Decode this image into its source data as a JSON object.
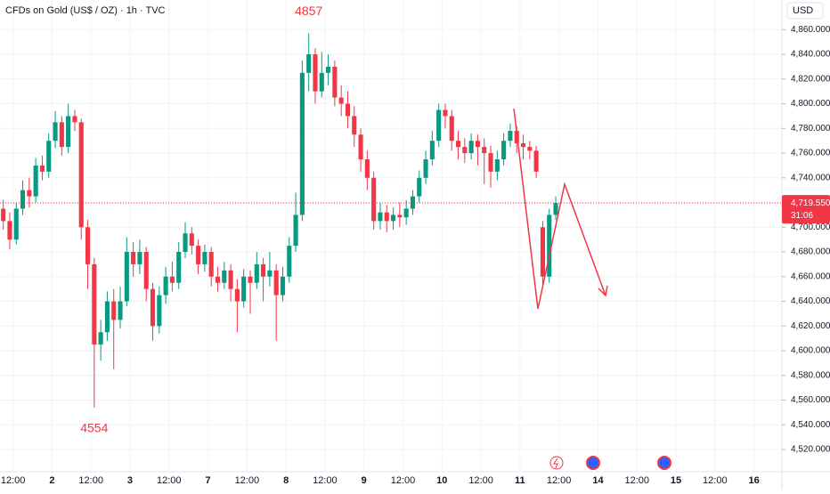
{
  "chart_data": {
    "type": "candlestick",
    "title": "CFDs on Gold (US$ / OZ) · 1h · TVC",
    "currency": "USD",
    "up_color": "#089981",
    "down_color": "#f23645",
    "grid": true,
    "xlim": [
      -0.5,
      119.8
    ],
    "xticks": [
      {
        "value": 1.5,
        "label": "12:00"
      },
      {
        "value": 7.5,
        "label": "2"
      },
      {
        "value": 13.5,
        "label": "12:00"
      },
      {
        "value": 19.5,
        "label": "3"
      },
      {
        "value": 25.5,
        "label": "12:00"
      },
      {
        "value": 31.5,
        "label": "7"
      },
      {
        "value": 37.5,
        "label": "12:00"
      },
      {
        "value": 43.5,
        "label": "8"
      },
      {
        "value": 49.5,
        "label": "12:00"
      },
      {
        "value": 55.5,
        "label": "9"
      },
      {
        "value": 61.5,
        "label": "12:00"
      },
      {
        "value": 67.5,
        "label": "10"
      },
      {
        "value": 73.5,
        "label": "12:00"
      },
      {
        "value": 79.5,
        "label": "11"
      },
      {
        "value": 85.5,
        "label": "12:00"
      },
      {
        "value": 91.5,
        "label": "14"
      },
      {
        "value": 97.5,
        "label": "12:00"
      },
      {
        "value": 103.5,
        "label": "15"
      },
      {
        "value": 109.5,
        "label": "12:00"
      },
      {
        "value": 115.5,
        "label": "16"
      }
    ],
    "ylim": [
      4502,
      4884
    ],
    "yticks": [
      {
        "value": 4520,
        "label": "4,520.000"
      },
      {
        "value": 4540,
        "label": "4,540.000"
      },
      {
        "value": 4560,
        "label": "4,560.000"
      },
      {
        "value": 4580,
        "label": "4,580.000"
      },
      {
        "value": 4600,
        "label": "4,600.000"
      },
      {
        "value": 4620,
        "label": "4,620.000"
      },
      {
        "value": 4640,
        "label": "4,640.000"
      },
      {
        "value": 4660,
        "label": "4,660.000"
      },
      {
        "value": 4680,
        "label": "4,680.000"
      },
      {
        "value": 4700,
        "label": "4,700.000"
      },
      {
        "value": 4720,
        "label": "4,720.000"
      },
      {
        "value": 4740,
        "label": "4,740.000"
      },
      {
        "value": 4760,
        "label": "4,760.000"
      },
      {
        "value": 4780,
        "label": "4,780.000"
      },
      {
        "value": 4800,
        "label": "4,800.000"
      },
      {
        "value": 4820,
        "label": "4,820.000"
      },
      {
        "value": 4840,
        "label": "4,840.000"
      },
      {
        "value": 4860,
        "label": "4,860.000"
      }
    ],
    "last_price": {
      "value": 4719.55,
      "label": "4,719.550"
    },
    "countdown": "31:06",
    "high_label": "4857",
    "low_label": "4554",
    "open": [
      4715,
      4705,
      4690,
      4715,
      4730,
      4725,
      4750,
      4745,
      4770,
      4785,
      4765,
      4790,
      4785,
      4700,
      4670,
      4605,
      4615,
      4640,
      4625,
      4640,
      4680,
      4670,
      4680,
      4650,
      4620,
      4645,
      4660,
      4655,
      4680,
      4695,
      4685,
      4670,
      4680,
      4660,
      4655,
      4665,
      4650,
      4640,
      4660,
      4655,
      4670,
      4660,
      4665,
      4645,
      4660,
      4685,
      4710,
      4825,
      4840,
      4810,
      4825,
      4830,
      4805,
      4800,
      4790,
      4775,
      4755,
      4740,
      4705,
      4712,
      4705,
      4710,
      4708,
      4715,
      4725,
      4740,
      4755,
      4770,
      4795,
      4790,
      4770,
      4765,
      4760,
      4770,
      4765,
      4760,
      4745,
      4755,
      4770,
      4778,
      4768,
      4765,
      4762,
      4700,
      4660,
      4710
    ],
    "high": [
      4722,
      4712,
      4720,
      4738,
      4740,
      4756,
      4758,
      4776,
      4794,
      4790,
      4800,
      4795,
      4788,
      4706,
      4675,
      4625,
      4648,
      4650,
      4652,
      4692,
      4688,
      4690,
      4684,
      4655,
      4652,
      4668,
      4672,
      4688,
      4704,
      4700,
      4690,
      4686,
      4684,
      4668,
      4672,
      4670,
      4658,
      4666,
      4665,
      4680,
      4675,
      4680,
      4670,
      4668,
      4692,
      4728,
      4835,
      4857,
      4845,
      4842,
      4840,
      4835,
      4815,
      4810,
      4798,
      4780,
      4762,
      4745,
      4720,
      4718,
      4716,
      4720,
      4722,
      4730,
      4746,
      4762,
      4778,
      4800,
      4800,
      4795,
      4778,
      4772,
      4776,
      4775,
      4772,
      4766,
      4762,
      4776,
      4784,
      4782,
      4775,
      4770,
      4766,
      4705,
      4715,
      4725
    ],
    "low": [
      4698,
      4682,
      4686,
      4710,
      4716,
      4720,
      4738,
      4740,
      4764,
      4758,
      4760,
      4778,
      4690,
      4650,
      4554,
      4592,
      4608,
      4585,
      4618,
      4636,
      4660,
      4662,
      4640,
      4608,
      4614,
      4638,
      4648,
      4650,
      4675,
      4678,
      4662,
      4664,
      4652,
      4648,
      4650,
      4640,
      4615,
      4635,
      4630,
      4650,
      4640,
      4652,
      4608,
      4640,
      4655,
      4680,
      4705,
      4810,
      4800,
      4805,
      4815,
      4798,
      4790,
      4780,
      4765,
      4745,
      4730,
      4698,
      4698,
      4696,
      4698,
      4700,
      4702,
      4710,
      4720,
      4735,
      4750,
      4765,
      4780,
      4762,
      4755,
      4752,
      4755,
      4750,
      4735,
      4732,
      4738,
      4750,
      4765,
      4760,
      4755,
      4755,
      4740,
      4652,
      4655,
      4706
    ],
    "close": [
      4705,
      4690,
      4715,
      4730,
      4725,
      4750,
      4745,
      4770,
      4785,
      4765,
      4790,
      4785,
      4700,
      4670,
      4605,
      4615,
      4640,
      4625,
      4640,
      4680,
      4670,
      4680,
      4650,
      4620,
      4645,
      4660,
      4655,
      4680,
      4695,
      4685,
      4670,
      4680,
      4660,
      4655,
      4665,
      4650,
      4640,
      4660,
      4655,
      4670,
      4660,
      4665,
      4645,
      4660,
      4685,
      4710,
      4825,
      4840,
      4810,
      4825,
      4830,
      4805,
      4800,
      4790,
      4775,
      4755,
      4740,
      4705,
      4712,
      4705,
      4710,
      4708,
      4715,
      4725,
      4740,
      4755,
      4770,
      4795,
      4790,
      4770,
      4765,
      4760,
      4770,
      4765,
      4760,
      4745,
      4755,
      4770,
      4778,
      4768,
      4765,
      4762,
      4745,
      4660,
      4710,
      4719.55
    ]
  }
}
